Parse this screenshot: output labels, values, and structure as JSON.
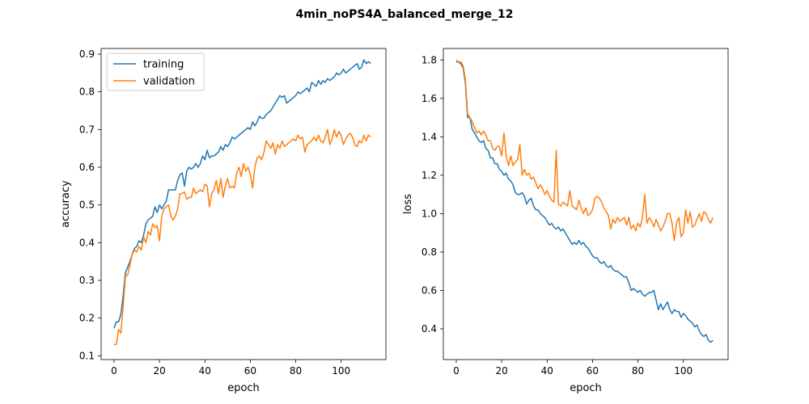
{
  "figure": {
    "suptitle": "4min_noPS4A_balanced_merge_12"
  },
  "colors": {
    "training": "#1f77b4",
    "validation": "#ff7f0e"
  },
  "chart_data": [
    {
      "type": "line",
      "xlabel": "epoch",
      "ylabel": "accuracy",
      "xlim": [
        -5.7,
        119.7
      ],
      "ylim": [
        0.09,
        0.915
      ],
      "xticks": [
        0,
        20,
        40,
        60,
        80,
        100
      ],
      "yticks": [
        0.1,
        0.2,
        0.3,
        0.4,
        0.5,
        0.6,
        0.7,
        0.8,
        0.9
      ],
      "legend": "upper-left",
      "grid": false,
      "x": [
        0,
        1,
        2,
        3,
        4,
        5,
        6,
        7,
        8,
        9,
        10,
        11,
        12,
        13,
        14,
        15,
        16,
        17,
        18,
        19,
        20,
        21,
        22,
        23,
        24,
        25,
        26,
        27,
        28,
        29,
        30,
        31,
        32,
        33,
        34,
        35,
        36,
        37,
        38,
        39,
        40,
        41,
        42,
        43,
        44,
        45,
        46,
        47,
        48,
        49,
        50,
        51,
        52,
        53,
        54,
        55,
        56,
        57,
        58,
        59,
        60,
        61,
        62,
        63,
        64,
        65,
        66,
        67,
        68,
        69,
        70,
        71,
        72,
        73,
        74,
        75,
        76,
        77,
        78,
        79,
        80,
        81,
        82,
        83,
        84,
        85,
        86,
        87,
        88,
        89,
        90,
        91,
        92,
        93,
        94,
        95,
        96,
        97,
        98,
        99,
        100,
        101,
        102,
        103,
        104,
        105,
        106,
        107,
        108,
        109,
        110,
        111,
        112,
        113
      ],
      "series": [
        {
          "name": "training",
          "values": [
            0.173,
            0.19,
            0.19,
            0.21,
            0.26,
            0.32,
            0.335,
            0.35,
            0.37,
            0.385,
            0.39,
            0.405,
            0.4,
            0.42,
            0.45,
            0.46,
            0.465,
            0.47,
            0.495,
            0.48,
            0.5,
            0.49,
            0.5,
            0.51,
            0.54,
            0.54,
            0.54,
            0.54,
            0.565,
            0.58,
            0.585,
            0.55,
            0.59,
            0.6,
            0.595,
            0.6,
            0.61,
            0.6,
            0.61,
            0.63,
            0.62,
            0.645,
            0.625,
            0.63,
            0.63,
            0.635,
            0.64,
            0.655,
            0.645,
            0.66,
            0.655,
            0.665,
            0.68,
            0.675,
            0.68,
            0.685,
            0.69,
            0.695,
            0.7,
            0.705,
            0.7,
            0.72,
            0.71,
            0.72,
            0.735,
            0.73,
            0.73,
            0.74,
            0.745,
            0.75,
            0.76,
            0.77,
            0.78,
            0.79,
            0.785,
            0.79,
            0.77,
            0.775,
            0.78,
            0.785,
            0.79,
            0.8,
            0.795,
            0.8,
            0.805,
            0.81,
            0.8,
            0.825,
            0.82,
            0.815,
            0.83,
            0.82,
            0.83,
            0.825,
            0.835,
            0.83,
            0.835,
            0.84,
            0.85,
            0.845,
            0.85,
            0.86,
            0.85,
            0.855,
            0.86,
            0.865,
            0.87,
            0.875,
            0.86,
            0.865,
            0.885,
            0.875,
            0.88,
            0.875
          ]
        },
        {
          "name": "validation",
          "values": [
            0.13,
            0.13,
            0.17,
            0.16,
            0.23,
            0.31,
            0.315,
            0.34,
            0.37,
            0.38,
            0.375,
            0.39,
            0.38,
            0.415,
            0.4,
            0.43,
            0.42,
            0.45,
            0.44,
            0.445,
            0.405,
            0.47,
            0.49,
            0.495,
            0.5,
            0.47,
            0.46,
            0.47,
            0.49,
            0.53,
            0.53,
            0.535,
            0.515,
            0.52,
            0.52,
            0.545,
            0.53,
            0.535,
            0.54,
            0.535,
            0.555,
            0.55,
            0.495,
            0.53,
            0.54,
            0.565,
            0.53,
            0.57,
            0.52,
            0.55,
            0.57,
            0.545,
            0.55,
            0.545,
            0.585,
            0.6,
            0.575,
            0.61,
            0.59,
            0.6,
            0.58,
            0.545,
            0.6,
            0.625,
            0.63,
            0.62,
            0.64,
            0.67,
            0.66,
            0.65,
            0.665,
            0.635,
            0.66,
            0.65,
            0.67,
            0.655,
            0.66,
            0.665,
            0.67,
            0.675,
            0.67,
            0.685,
            0.675,
            0.68,
            0.64,
            0.66,
            0.665,
            0.67,
            0.68,
            0.67,
            0.685,
            0.67,
            0.665,
            0.68,
            0.7,
            0.66,
            0.675,
            0.7,
            0.68,
            0.695,
            0.685,
            0.66,
            0.675,
            0.685,
            0.69,
            0.68,
            0.66,
            0.655,
            0.67,
            0.665,
            0.685,
            0.67,
            0.685,
            0.68
          ]
        }
      ]
    },
    {
      "type": "line",
      "xlabel": "epoch",
      "ylabel": "loss",
      "xlim": [
        -5.7,
        119.7
      ],
      "ylim": [
        0.24,
        1.86
      ],
      "xticks": [
        0,
        20,
        40,
        60,
        80,
        100
      ],
      "yticks": [
        0.4,
        0.6,
        0.8,
        1.0,
        1.2,
        1.4,
        1.6,
        1.8
      ],
      "grid": false,
      "x": [
        0,
        1,
        2,
        3,
        4,
        5,
        6,
        7,
        8,
        9,
        10,
        11,
        12,
        13,
        14,
        15,
        16,
        17,
        18,
        19,
        20,
        21,
        22,
        23,
        24,
        25,
        26,
        27,
        28,
        29,
        30,
        31,
        32,
        33,
        34,
        35,
        36,
        37,
        38,
        39,
        40,
        41,
        42,
        43,
        44,
        45,
        46,
        47,
        48,
        49,
        50,
        51,
        52,
        53,
        54,
        55,
        56,
        57,
        58,
        59,
        60,
        61,
        62,
        63,
        64,
        65,
        66,
        67,
        68,
        69,
        70,
        71,
        72,
        73,
        74,
        75,
        76,
        77,
        78,
        79,
        80,
        81,
        82,
        83,
        84,
        85,
        86,
        87,
        88,
        89,
        90,
        91,
        92,
        93,
        94,
        95,
        96,
        97,
        98,
        99,
        100,
        101,
        102,
        103,
        104,
        105,
        106,
        107,
        108,
        109,
        110,
        111,
        112,
        113
      ],
      "series": [
        {
          "name": "training",
          "values": [
            1.79,
            1.79,
            1.78,
            1.76,
            1.68,
            1.5,
            1.5,
            1.44,
            1.42,
            1.4,
            1.38,
            1.37,
            1.38,
            1.34,
            1.33,
            1.29,
            1.29,
            1.26,
            1.26,
            1.23,
            1.22,
            1.2,
            1.21,
            1.18,
            1.17,
            1.15,
            1.11,
            1.1,
            1.1,
            1.11,
            1.09,
            1.05,
            1.07,
            1.08,
            1.04,
            1.02,
            1.02,
            1.0,
            0.99,
            0.98,
            0.96,
            0.94,
            0.95,
            0.93,
            0.92,
            0.93,
            0.91,
            0.92,
            0.9,
            0.88,
            0.86,
            0.84,
            0.85,
            0.84,
            0.86,
            0.84,
            0.85,
            0.83,
            0.82,
            0.8,
            0.78,
            0.77,
            0.77,
            0.75,
            0.74,
            0.75,
            0.73,
            0.72,
            0.73,
            0.71,
            0.7,
            0.7,
            0.69,
            0.68,
            0.67,
            0.67,
            0.64,
            0.6,
            0.61,
            0.6,
            0.59,
            0.6,
            0.58,
            0.57,
            0.58,
            0.59,
            0.59,
            0.6,
            0.55,
            0.5,
            0.53,
            0.5,
            0.52,
            0.54,
            0.5,
            0.48,
            0.5,
            0.49,
            0.49,
            0.46,
            0.48,
            0.47,
            0.45,
            0.44,
            0.43,
            0.41,
            0.42,
            0.39,
            0.37,
            0.36,
            0.37,
            0.34,
            0.33,
            0.34
          ]
        },
        {
          "name": "validation",
          "values": [
            1.8,
            1.79,
            1.79,
            1.77,
            1.7,
            1.52,
            1.5,
            1.48,
            1.45,
            1.42,
            1.43,
            1.41,
            1.43,
            1.41,
            1.38,
            1.38,
            1.34,
            1.33,
            1.35,
            1.35,
            1.3,
            1.42,
            1.3,
            1.25,
            1.3,
            1.25,
            1.27,
            1.28,
            1.36,
            1.2,
            1.23,
            1.2,
            1.21,
            1.18,
            1.19,
            1.16,
            1.13,
            1.15,
            1.13,
            1.1,
            1.12,
            1.09,
            1.07,
            1.06,
            1.33,
            1.05,
            1.04,
            1.06,
            1.05,
            1.04,
            1.12,
            1.04,
            1.03,
            1.02,
            1.07,
            1.03,
            1.0,
            1.03,
            0.99,
            1.0,
            1.02,
            1.08,
            1.09,
            1.08,
            1.06,
            1.03,
            1.01,
            0.99,
            0.92,
            0.97,
            0.95,
            0.98,
            0.96,
            0.97,
            0.98,
            0.94,
            0.98,
            0.92,
            0.94,
            0.91,
            0.95,
            0.93,
            0.98,
            1.1,
            0.95,
            0.98,
            0.96,
            0.93,
            0.97,
            0.94,
            0.91,
            0.93,
            0.96,
            1.0,
            1.0,
            0.95,
            0.86,
            0.95,
            0.98,
            0.88,
            0.9,
            1.02,
            0.95,
            1.01,
            0.93,
            0.94,
            0.97,
            1.0,
            0.96,
            1.01,
            1.0,
            0.97,
            0.95,
            0.98
          ]
        }
      ]
    }
  ]
}
